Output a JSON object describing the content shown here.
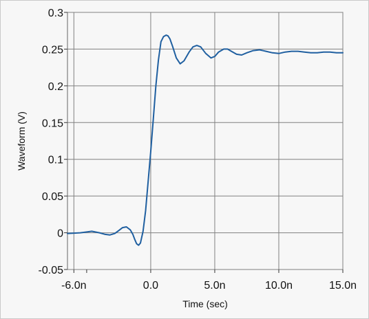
{
  "chart_data": {
    "type": "line",
    "title": "",
    "xlabel": "Time (sec)",
    "ylabel": "Waveform (V)",
    "xlim": [
      -6.5,
      15.0
    ],
    "ylim": [
      -0.05,
      0.3
    ],
    "grid": true,
    "x_ticks": [
      -6.0,
      -5.0,
      0.0,
      5.0,
      10.0,
      15.0
    ],
    "x_tick_labels": [
      "-6.0n",
      "",
      "0.0",
      "5.0n",
      "10.0n",
      "15.0n"
    ],
    "y_ticks": [
      -0.05,
      0,
      0.05,
      0.1,
      0.15,
      0.2,
      0.25,
      0.3
    ],
    "y_tick_labels": [
      "-0.05",
      "0",
      "0.05",
      "0.1",
      "0.15",
      "0.2",
      "0.25",
      "0.3"
    ],
    "x_units": "ns",
    "colors": {
      "line": "#1f5fa0",
      "grid": "#808080",
      "plot_bg": "#f7f7f7"
    },
    "series": [
      {
        "x": [
          -6.5,
          -5.5,
          -4.6,
          -4.0,
          -3.6,
          -3.2,
          -2.8,
          -2.5,
          -2.2,
          -1.9,
          -1.6,
          -1.4,
          -1.25,
          -1.1,
          -0.95,
          -0.8,
          -0.6,
          -0.4,
          -0.2,
          0.0,
          0.2,
          0.4,
          0.6,
          0.8,
          1.0,
          1.2,
          1.35,
          1.5,
          1.7,
          2.0,
          2.3,
          2.6,
          3.0,
          3.3,
          3.6,
          3.9,
          4.3,
          4.7,
          5.0,
          5.3,
          5.7,
          6.0,
          6.3,
          6.7,
          7.1,
          7.5,
          8.0,
          8.5,
          9.0,
          9.5,
          10.0,
          10.5,
          11.0,
          11.5,
          12.0,
          12.5,
          13.0,
          13.5,
          14.0,
          14.5,
          15.0
        ],
        "y": [
          -0.001,
          0.0,
          0.002,
          0.0,
          -0.002,
          -0.003,
          -0.001,
          0.003,
          0.007,
          0.008,
          0.004,
          -0.002,
          -0.009,
          -0.015,
          -0.017,
          -0.014,
          0.002,
          0.03,
          0.07,
          0.11,
          0.155,
          0.2,
          0.235,
          0.26,
          0.267,
          0.269,
          0.268,
          0.264,
          0.254,
          0.238,
          0.23,
          0.234,
          0.246,
          0.253,
          0.255,
          0.253,
          0.244,
          0.238,
          0.24,
          0.246,
          0.25,
          0.25,
          0.247,
          0.243,
          0.242,
          0.245,
          0.248,
          0.249,
          0.247,
          0.245,
          0.244,
          0.246,
          0.247,
          0.247,
          0.246,
          0.245,
          0.245,
          0.246,
          0.246,
          0.245,
          0.245
        ]
      }
    ]
  }
}
